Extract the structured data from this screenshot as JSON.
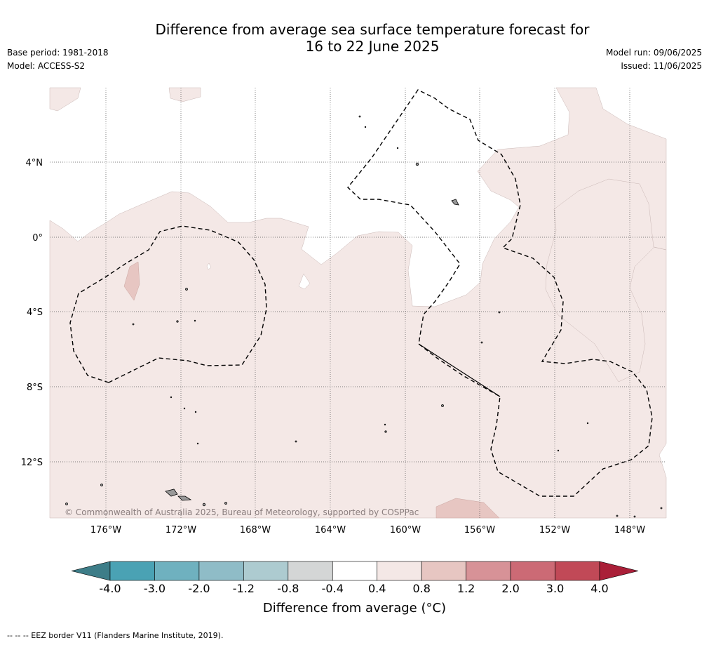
{
  "title_line1": "Difference from average sea surface temperature forecast for",
  "title_line2": "16 to 22 June 2025",
  "meta_left": [
    "Base period: 1981-2018",
    "Model: ACCESS-S2"
  ],
  "meta_right": [
    "Model run: 09/06/2025",
    "Issued: 11/06/2025"
  ],
  "copyright": "© Commonwealth of Australia 2025, Bureau of Meteorology, supported by COSPPac",
  "lat_labels": [
    "4°N",
    "0°",
    "4°S",
    "8°S",
    "12°S"
  ],
  "lon_labels": [
    "176°W",
    "172°W",
    "168°W",
    "164°W",
    "160°W",
    "156°W",
    "152°W",
    "148°W"
  ],
  "colorbar": {
    "title": "Difference from average (°C)",
    "ticks": [
      "-4.0",
      "-3.0",
      "-2.0",
      "-1.2",
      "-0.8",
      "-0.4",
      "0.4",
      "0.8",
      "1.2",
      "2.0",
      "3.0",
      "4.0"
    ],
    "colors": [
      "#4aa2b4",
      "#6fb1bf",
      "#8fbcc7",
      "#adcbd0",
      "#d4d6d6",
      "#ffffff",
      "#f4e8e6",
      "#e7c6c2",
      "#d79297",
      "#cc6a75",
      "#c14957"
    ],
    "under_color": "#3d7d88",
    "over_color": "#aa1f38"
  },
  "legend_colors": {
    "light_warm": "#f4e8e6",
    "warm": "#e7c6c2",
    "land": "#999999"
  },
  "footnote": "--  --  -- EEZ border V11 (Flanders Marine Institute, 2019)."
}
